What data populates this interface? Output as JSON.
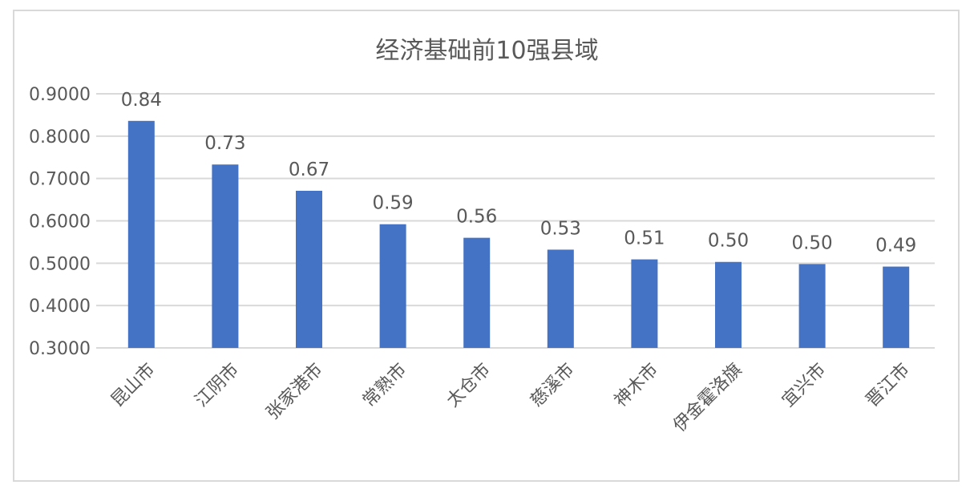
{
  "chart_data": {
    "type": "bar",
    "title": "经济基础前10强县域",
    "categories": [
      "昆山市",
      "江阴市",
      "张家港市",
      "常熟市",
      "太仓市",
      "慈溪市",
      "神木市",
      "伊金霍洛旗",
      "宜兴市",
      "晋江市"
    ],
    "values": [
      0.836,
      0.733,
      0.671,
      0.592,
      0.56,
      0.532,
      0.509,
      0.503,
      0.498,
      0.492
    ],
    "data_labels": [
      "0.84",
      "0.73",
      "0.67",
      "0.59",
      "0.56",
      "0.53",
      "0.51",
      "0.50",
      "0.50",
      "0.49"
    ],
    "y_ticks": [
      "0.3000",
      "0.4000",
      "0.5000",
      "0.6000",
      "0.7000",
      "0.8000",
      "0.9000"
    ],
    "ylim": [
      0.3,
      0.9
    ],
    "xlabel": "",
    "ylabel": "",
    "grid": true,
    "legend": "none",
    "colors": {
      "bar": "#4472c4",
      "grid": "#d9d9d9",
      "text": "#595959"
    }
  }
}
